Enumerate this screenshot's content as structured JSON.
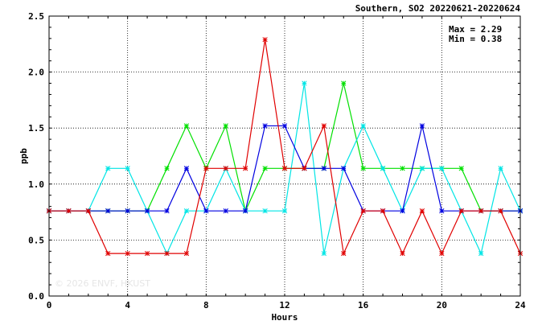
{
  "chart_data": {
    "type": "line",
    "title": "Southern, SO2 20220621-20220624",
    "xlabel": "Hours",
    "ylabel": "ppb",
    "xlim": [
      0,
      24
    ],
    "ylim": [
      0,
      2.5
    ],
    "x_ticks": [
      0,
      4,
      8,
      12,
      16,
      20,
      24
    ],
    "y_ticks": [
      "0.0",
      "0.5",
      "1.0",
      "1.5",
      "2.0",
      "2.5"
    ],
    "grid": true,
    "stats": {
      "max": "Max = 2.29",
      "min": "Min = 0.38"
    },
    "watermark": "© 2026  ENVF, HKUST",
    "x": [
      0,
      1,
      2,
      3,
      4,
      5,
      6,
      7,
      8,
      9,
      10,
      11,
      12,
      13,
      14,
      15,
      16,
      17,
      18,
      19,
      20,
      21,
      22,
      23,
      24
    ],
    "series": [
      {
        "color": "#00e000",
        "values": [
          0.76,
          0.76,
          0.76,
          0.76,
          0.76,
          0.76,
          1.14,
          1.52,
          1.14,
          1.52,
          0.76,
          1.14,
          1.14,
          1.14,
          1.14,
          1.9,
          1.14,
          1.14,
          1.14,
          1.14,
          1.14,
          1.14,
          0.76,
          0.76,
          0.76
        ]
      },
      {
        "color": "#00e5e5",
        "values": [
          0.76,
          0.76,
          0.76,
          1.14,
          1.14,
          0.76,
          0.38,
          0.76,
          0.76,
          1.14,
          0.76,
          0.76,
          0.76,
          1.9,
          0.38,
          1.14,
          1.52,
          1.14,
          0.76,
          1.14,
          1.14,
          0.76,
          0.38,
          1.14,
          0.76
        ]
      },
      {
        "color": "#0000e0",
        "values": [
          0.76,
          0.76,
          0.76,
          0.76,
          0.76,
          0.76,
          0.76,
          1.14,
          0.76,
          0.76,
          0.76,
          1.52,
          1.52,
          1.14,
          1.14,
          1.14,
          0.76,
          0.76,
          0.76,
          1.52,
          0.76,
          0.76,
          0.76,
          0.76,
          0.76
        ]
      },
      {
        "color": "#e00000",
        "values": [
          0.76,
          0.76,
          0.76,
          0.38,
          0.38,
          0.38,
          0.38,
          0.38,
          1.14,
          1.14,
          1.14,
          2.29,
          1.14,
          1.14,
          1.52,
          0.38,
          0.76,
          0.76,
          0.38,
          0.76,
          0.38,
          0.76,
          0.76,
          0.76,
          0.38
        ]
      }
    ]
  }
}
